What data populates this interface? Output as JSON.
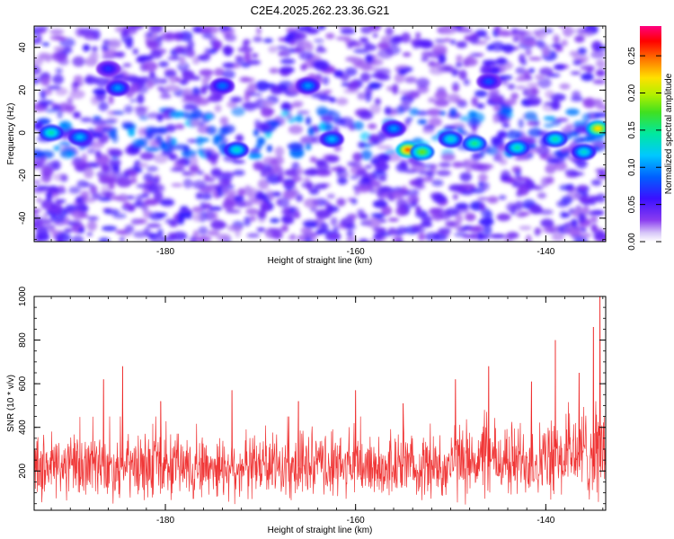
{
  "title": "C2E4.2025.262.23.36.G21",
  "colors": {
    "snr_line": "#ee2222",
    "colormap": [
      "#ffffff",
      "#c8b8f0",
      "#8a3cf0",
      "#5a10ff",
      "#1a20f0",
      "#00a0ff",
      "#00e0d0",
      "#20e060",
      "#a0f000",
      "#ffe000",
      "#ff8000",
      "#ff0000",
      "#ff0080"
    ]
  },
  "chart_data": [
    {
      "type": "heatmap",
      "title": "C2E4.2025.262.23.36.G21",
      "xlabel": "Height of straight line (km)",
      "ylabel": "Frequency (Hz)",
      "xlim": [
        -193.8,
        -133.7
      ],
      "ylim": [
        -51,
        50
      ],
      "xticks": [
        -180,
        -160,
        -140
      ],
      "yticks": [
        -40,
        -20,
        0,
        20,
        40
      ],
      "xtick_labels": [
        "-180",
        "-160",
        "-140"
      ],
      "ytick_labels": [
        "-40",
        "-20",
        "0",
        "20",
        "40"
      ],
      "colorbar": {
        "label": "Normalized spectral amplitude",
        "range": [
          0,
          0.29
        ],
        "ticks": [
          0.0,
          0.05,
          0.1,
          0.15,
          0.2,
          0.25
        ],
        "tick_labels": [
          "0.00",
          "0.05",
          "0.10",
          "0.15",
          "0.20",
          "0.25"
        ]
      },
      "signal_band": {
        "freq_center_hz": 0,
        "freq_halfwidth_hz": 8
      },
      "peaks": [
        {
          "x": -154.5,
          "y": -8,
          "amplitude": 0.25
        },
        {
          "x": -134.5,
          "y": 2,
          "amplitude": 0.22
        },
        {
          "x": -153.0,
          "y": -9,
          "amplitude": 0.18
        },
        {
          "x": -192.0,
          "y": 0,
          "amplitude": 0.14
        },
        {
          "x": -147.5,
          "y": -5,
          "amplitude": 0.15
        },
        {
          "x": -143.0,
          "y": -7,
          "amplitude": 0.14
        },
        {
          "x": -139.0,
          "y": -3,
          "amplitude": 0.14
        },
        {
          "x": -172.5,
          "y": -8,
          "amplitude": 0.13
        },
        {
          "x": -150.0,
          "y": -3,
          "amplitude": 0.13
        },
        {
          "x": -185.0,
          "y": 21,
          "amplitude": 0.1
        },
        {
          "x": -189.0,
          "y": -2,
          "amplitude": 0.11
        },
        {
          "x": -136.0,
          "y": -9,
          "amplitude": 0.13
        },
        {
          "x": -174.0,
          "y": 22,
          "amplitude": 0.09
        },
        {
          "x": -165.0,
          "y": 22,
          "amplitude": 0.1
        },
        {
          "x": -146.0,
          "y": 24,
          "amplitude": 0.08
        },
        {
          "x": -156.0,
          "y": 2,
          "amplitude": 0.1
        },
        {
          "x": -186.0,
          "y": 30,
          "amplitude": 0.07
        },
        {
          "x": -162.5,
          "y": -3,
          "amplitude": 0.11
        }
      ]
    },
    {
      "type": "line",
      "xlabel": "Height of straight line (km)",
      "ylabel": "SNR (10 * v/v)",
      "xlim": [
        -193.8,
        -133.7
      ],
      "ylim": [
        20,
        1000
      ],
      "xticks": [
        -180,
        -160,
        -140
      ],
      "yticks": [
        200,
        400,
        600,
        800,
        1000
      ],
      "xtick_labels": [
        "-180",
        "-160",
        "-140"
      ],
      "ytick_labels": [
        "200",
        "400",
        "600",
        "800",
        "1000"
      ],
      "series": [
        {
          "name": "SNR",
          "baseline_typical": 220,
          "typical_range": [
            40,
            450
          ],
          "notable_spikes": [
            {
              "x": -186.5,
              "y": 620
            },
            {
              "x": -184.5,
              "y": 680
            },
            {
              "x": -180.5,
              "y": 520
            },
            {
              "x": -173.0,
              "y": 570
            },
            {
              "x": -166.0,
              "y": 520
            },
            {
              "x": -160.0,
              "y": 570
            },
            {
              "x": -155.0,
              "y": 510
            },
            {
              "x": -149.5,
              "y": 620
            },
            {
              "x": -146.0,
              "y": 680
            },
            {
              "x": -141.5,
              "y": 610
            },
            {
              "x": -139.0,
              "y": 800
            },
            {
              "x": -136.5,
              "y": 650
            },
            {
              "x": -135.0,
              "y": 860
            },
            {
              "x": -134.3,
              "y": 1000
            }
          ]
        }
      ]
    }
  ]
}
